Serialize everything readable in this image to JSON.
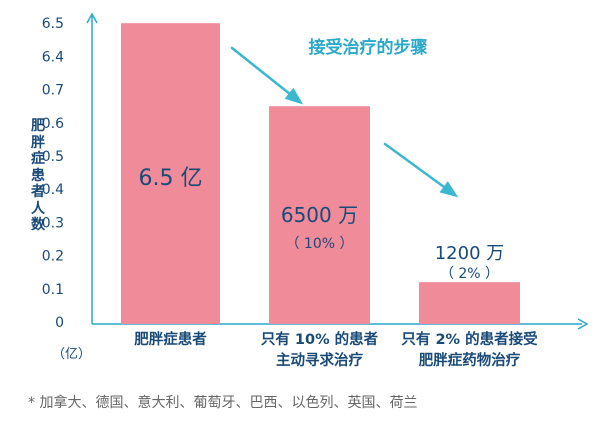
{
  "chart_data": {
    "type": "bar",
    "ylabel": "肥胖症患者人数",
    "y_unit": "（亿）",
    "ylim": [
      0,
      6.5
    ],
    "y_ticks": [
      "0",
      "0.1",
      "0.2",
      "0.3",
      "0.4",
      "0.5",
      "0.6",
      "0.7",
      "6.4",
      "6.5"
    ],
    "categories": [
      [
        "肥胖症患者"
      ],
      [
        "只有 10% 的患者",
        "主动寻求治疗"
      ],
      [
        "只有 2% 的患者接受",
        "肥胖症药物治疗"
      ]
    ],
    "values": [
      6.5,
      0.65,
      0.12
    ],
    "data_labels": [
      [
        "6.5 亿"
      ],
      [
        "6500 万",
        "（ 10% ）"
      ],
      [
        "1200 万",
        "（ 2% ）"
      ]
    ],
    "annotation": "接受治疗的步骤",
    "footnote": "* 加拿大、德国、意大利、葡萄牙、巴西、以色列、英国、荷兰",
    "colors": {
      "bar": "#f08b99",
      "axis": "#2aa9c9",
      "text": "#1a4a78",
      "arrow": "#3ab8d0",
      "annotation": "#2aa9c9"
    }
  }
}
